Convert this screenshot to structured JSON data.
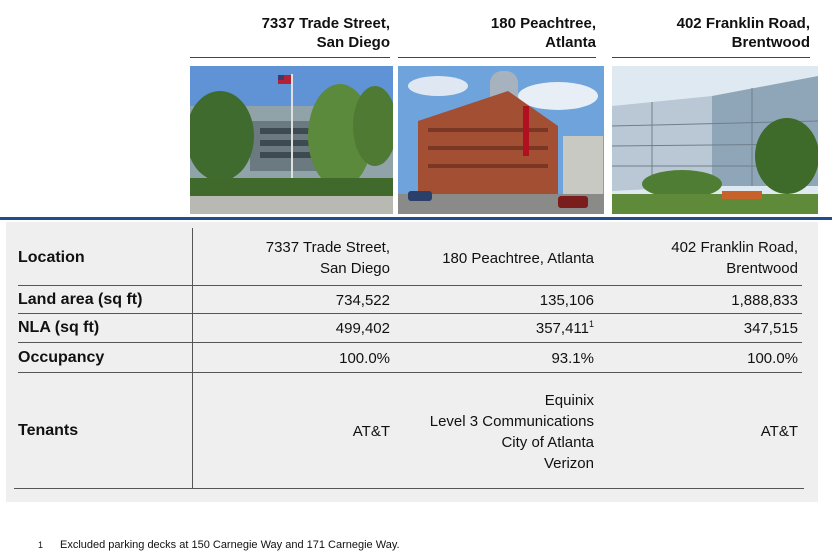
{
  "columns": [
    {
      "line1": "7337 Trade Street,",
      "line2": "San Diego"
    },
    {
      "line1": "180 Peachtree,",
      "line2": "Atlanta"
    },
    {
      "line1": "402 Franklin Road,",
      "line2": "Brentwood"
    }
  ],
  "rows": {
    "location": {
      "label": "Location",
      "values": [
        {
          "line1": "7337 Trade Street,",
          "line2": "San Diego"
        },
        {
          "line1": "180 Peachtree, Atlanta"
        },
        {
          "line1": "402 Franklin Road,",
          "line2": "Brentwood"
        }
      ]
    },
    "land_area": {
      "label": "Land area (sq ft)",
      "values": [
        "734,522",
        "135,106",
        "1,888,833"
      ]
    },
    "nla": {
      "label": "NLA (sq ft)",
      "values": [
        "499,402",
        "357,411",
        "347,515"
      ],
      "footnote_marker": "1"
    },
    "occupancy": {
      "label": "Occupancy",
      "values": [
        "100.0%",
        "93.1%",
        "100.0%"
      ]
    },
    "tenants": {
      "label": "Tenants",
      "col1": [
        "AT&T"
      ],
      "col2": [
        "Equinix",
        "Level 3 Communications",
        "City of Atlanta",
        "Verizon"
      ],
      "col3": [
        "AT&T"
      ]
    }
  },
  "footnote": {
    "marker": "1",
    "text": "Excluded parking decks at 150 Carnegie Way and 171 Carnegie Way."
  }
}
